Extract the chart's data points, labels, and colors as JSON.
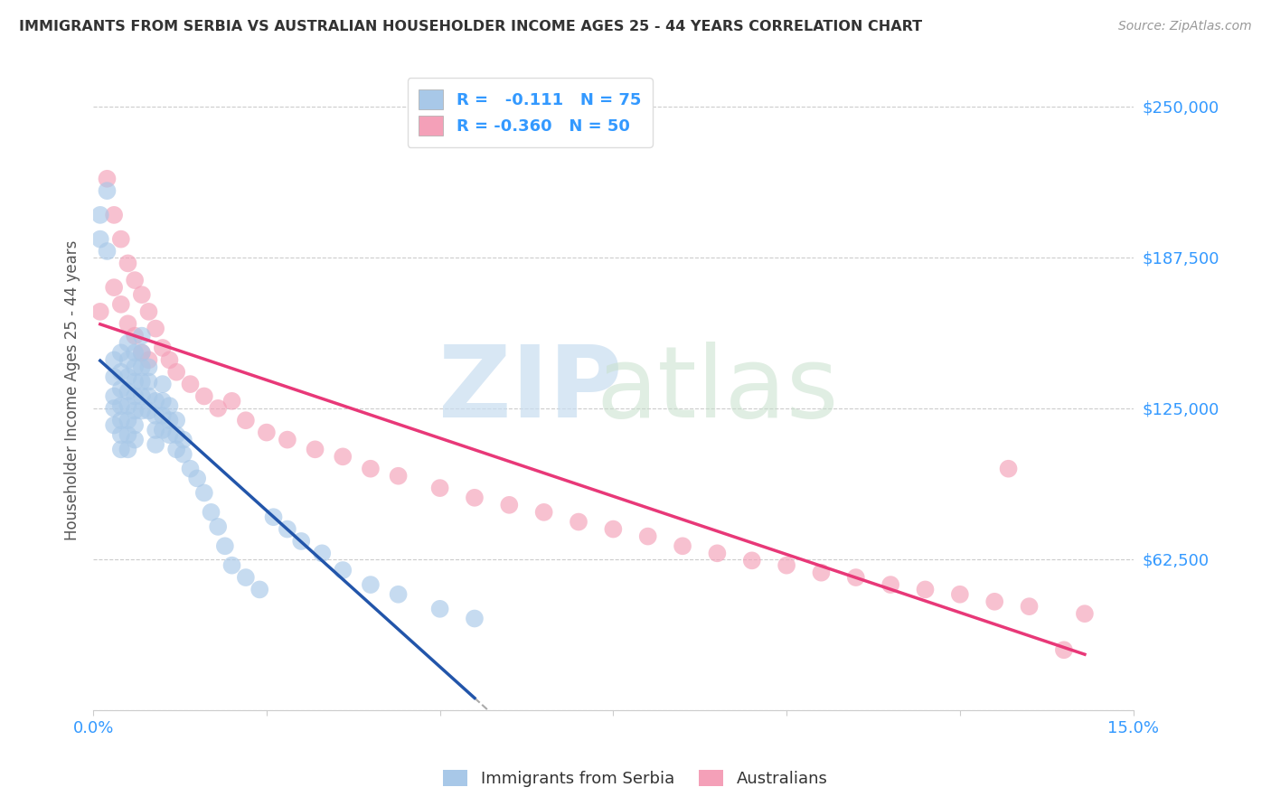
{
  "title": "IMMIGRANTS FROM SERBIA VS AUSTRALIAN HOUSEHOLDER INCOME AGES 25 - 44 YEARS CORRELATION CHART",
  "source": "Source: ZipAtlas.com",
  "ylabel": "Householder Income Ages 25 - 44 years",
  "y_ticks": [
    0,
    62500,
    125000,
    187500,
    250000
  ],
  "y_tick_labels": [
    "",
    "$62,500",
    "$125,000",
    "$187,500",
    "$250,000"
  ],
  "x_min": 0.0,
  "x_max": 0.15,
  "y_min": 0,
  "y_max": 265000,
  "color_serbia": "#a8c8e8",
  "color_australia": "#f4a0b8",
  "line_color_serbia": "#2255aa",
  "line_color_australia": "#e83878",
  "serbia_points_x": [
    0.001,
    0.001,
    0.002,
    0.002,
    0.003,
    0.003,
    0.003,
    0.003,
    0.003,
    0.004,
    0.004,
    0.004,
    0.004,
    0.004,
    0.004,
    0.004,
    0.005,
    0.005,
    0.005,
    0.005,
    0.005,
    0.005,
    0.005,
    0.005,
    0.006,
    0.006,
    0.006,
    0.006,
    0.006,
    0.006,
    0.006,
    0.007,
    0.007,
    0.007,
    0.007,
    0.007,
    0.007,
    0.008,
    0.008,
    0.008,
    0.008,
    0.009,
    0.009,
    0.009,
    0.009,
    0.01,
    0.01,
    0.01,
    0.01,
    0.011,
    0.011,
    0.011,
    0.012,
    0.012,
    0.012,
    0.013,
    0.013,
    0.014,
    0.015,
    0.016,
    0.017,
    0.018,
    0.019,
    0.02,
    0.022,
    0.024,
    0.026,
    0.028,
    0.03,
    0.033,
    0.036,
    0.04,
    0.044,
    0.05,
    0.055
  ],
  "serbia_points_y": [
    205000,
    195000,
    215000,
    190000,
    145000,
    138000,
    130000,
    125000,
    118000,
    148000,
    140000,
    133000,
    126000,
    120000,
    114000,
    108000,
    152000,
    145000,
    138000,
    132000,
    126000,
    120000,
    114000,
    108000,
    148000,
    142000,
    136000,
    130000,
    124000,
    118000,
    112000,
    155000,
    148000,
    142000,
    136000,
    130000,
    124000,
    142000,
    136000,
    130000,
    124000,
    128000,
    122000,
    116000,
    110000,
    135000,
    128000,
    122000,
    116000,
    126000,
    120000,
    114000,
    120000,
    114000,
    108000,
    112000,
    106000,
    100000,
    96000,
    90000,
    82000,
    76000,
    68000,
    60000,
    55000,
    50000,
    80000,
    75000,
    70000,
    65000,
    58000,
    52000,
    48000,
    42000,
    38000
  ],
  "australia_points_x": [
    0.001,
    0.002,
    0.003,
    0.003,
    0.004,
    0.004,
    0.005,
    0.005,
    0.006,
    0.006,
    0.007,
    0.007,
    0.008,
    0.008,
    0.009,
    0.01,
    0.011,
    0.012,
    0.014,
    0.016,
    0.018,
    0.02,
    0.022,
    0.025,
    0.028,
    0.032,
    0.036,
    0.04,
    0.044,
    0.05,
    0.055,
    0.06,
    0.065,
    0.07,
    0.075,
    0.08,
    0.085,
    0.09,
    0.095,
    0.1,
    0.105,
    0.11,
    0.115,
    0.12,
    0.125,
    0.13,
    0.132,
    0.135,
    0.14,
    0.143
  ],
  "australia_points_y": [
    165000,
    220000,
    205000,
    175000,
    195000,
    168000,
    185000,
    160000,
    178000,
    155000,
    172000,
    148000,
    165000,
    145000,
    158000,
    150000,
    145000,
    140000,
    135000,
    130000,
    125000,
    128000,
    120000,
    115000,
    112000,
    108000,
    105000,
    100000,
    97000,
    92000,
    88000,
    85000,
    82000,
    78000,
    75000,
    72000,
    68000,
    65000,
    62000,
    60000,
    57000,
    55000,
    52000,
    50000,
    48000,
    45000,
    100000,
    43000,
    25000,
    40000
  ]
}
